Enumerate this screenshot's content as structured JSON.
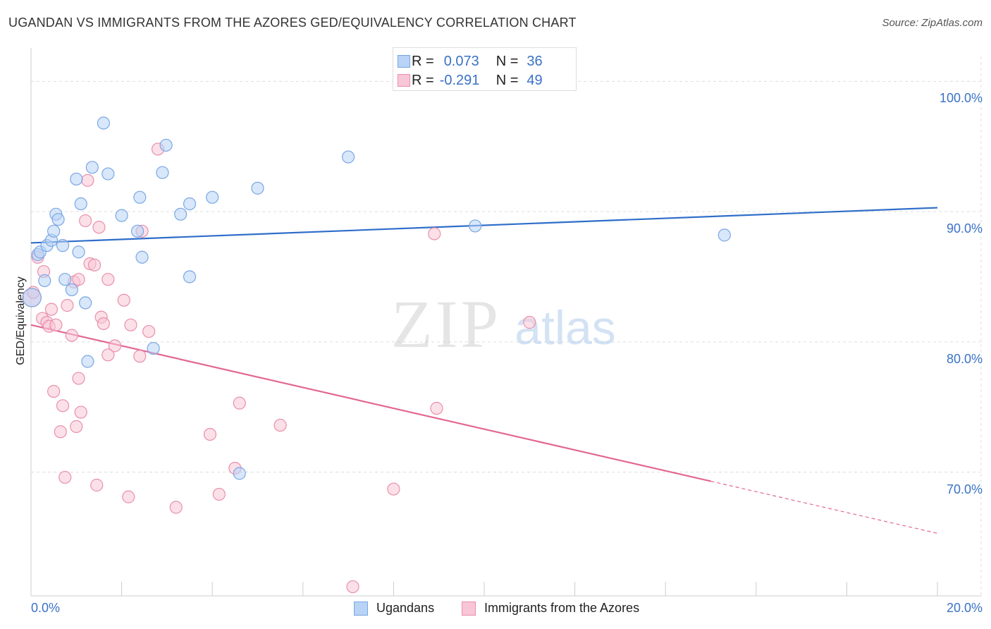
{
  "header": {
    "title": "UGANDAN VS IMMIGRANTS FROM THE AZORES GED/EQUIVALENCY CORRELATION CHART",
    "source": "Source: ZipAtlas.com"
  },
  "watermark": {
    "zip": "ZIP",
    "atlas": "atlas"
  },
  "legend_top": {
    "rows": [
      {
        "r_label": "R =",
        "r_value": "0.073",
        "n_label": "N =",
        "n_value": "36"
      },
      {
        "r_label": "R =",
        "r_value": "-0.291",
        "n_label": "N =",
        "n_value": "49"
      }
    ]
  },
  "legend_bottom": {
    "items": [
      {
        "label": "Ugandans"
      },
      {
        "label": "Immigrants from the Azores"
      }
    ]
  },
  "colors": {
    "blue_fill": "#b8d3f5",
    "blue_stroke": "#7aa7e3",
    "blue_line": "#2f6ec9",
    "pink_fill": "#f8c6d6",
    "pink_stroke": "#ea8fac",
    "pink_line": "#e36794",
    "axis_label": "#3a72c6",
    "grid": "#dddddd"
  },
  "chart_data": {
    "type": "scatter",
    "title": "UGANDAN VS IMMIGRANTS FROM THE AZORES GED/EQUIVALENCY CORRELATION CHART",
    "ylabel": "GED/Equivalency",
    "xlabel": "",
    "xlim": [
      0,
      20
    ],
    "ylim": [
      60.5,
      103
    ],
    "x_tick_labels": [
      "0.0%",
      "20.0%"
    ],
    "y_ticks": [
      70,
      80,
      90,
      100
    ],
    "y_tick_labels": [
      "70.0%",
      "80.0%",
      "90.0%",
      "100.0%"
    ],
    "grid": true,
    "series": [
      {
        "name": "Ugandans",
        "points": [
          [
            0.02,
            83.4
          ],
          [
            0.15,
            86.7
          ],
          [
            0.2,
            86.9
          ],
          [
            0.3,
            84.7
          ],
          [
            0.35,
            87.4
          ],
          [
            0.45,
            87.8
          ],
          [
            0.5,
            88.5
          ],
          [
            0.55,
            89.8
          ],
          [
            0.6,
            89.4
          ],
          [
            0.7,
            87.4
          ],
          [
            0.75,
            84.8
          ],
          [
            0.9,
            84.0
          ],
          [
            1.0,
            92.5
          ],
          [
            1.05,
            86.9
          ],
          [
            1.1,
            90.6
          ],
          [
            1.2,
            83.0
          ],
          [
            1.25,
            78.5
          ],
          [
            1.35,
            93.4
          ],
          [
            1.6,
            96.8
          ],
          [
            1.7,
            92.9
          ],
          [
            2.0,
            89.7
          ],
          [
            2.35,
            88.5
          ],
          [
            2.4,
            91.1
          ],
          [
            2.45,
            86.5
          ],
          [
            2.7,
            79.5
          ],
          [
            2.9,
            93.0
          ],
          [
            2.98,
            95.1
          ],
          [
            3.3,
            89.8
          ],
          [
            3.5,
            90.6
          ],
          [
            3.5,
            85.0
          ],
          [
            4.0,
            91.1
          ],
          [
            4.6,
            69.9
          ],
          [
            5.0,
            91.8
          ],
          [
            7.0,
            94.2
          ],
          [
            9.8,
            88.9
          ],
          [
            15.3,
            88.2
          ]
        ]
      },
      {
        "name": "Immigrants from the Azores",
        "points": [
          [
            0.02,
            83.4
          ],
          [
            0.05,
            83.8
          ],
          [
            0.15,
            86.5
          ],
          [
            0.25,
            81.8
          ],
          [
            0.28,
            85.4
          ],
          [
            0.35,
            81.5
          ],
          [
            0.4,
            81.2
          ],
          [
            0.45,
            82.5
          ],
          [
            0.5,
            76.2
          ],
          [
            0.55,
            81.3
          ],
          [
            0.65,
            73.1
          ],
          [
            0.7,
            75.1
          ],
          [
            0.75,
            69.6
          ],
          [
            0.8,
            82.8
          ],
          [
            0.9,
            80.5
          ],
          [
            0.95,
            84.6
          ],
          [
            1.0,
            73.5
          ],
          [
            1.05,
            84.8
          ],
          [
            1.05,
            77.2
          ],
          [
            1.1,
            74.6
          ],
          [
            1.2,
            89.3
          ],
          [
            1.25,
            92.4
          ],
          [
            1.3,
            86.0
          ],
          [
            1.4,
            85.9
          ],
          [
            1.45,
            69.0
          ],
          [
            1.5,
            88.8
          ],
          [
            1.55,
            81.9
          ],
          [
            1.6,
            81.4
          ],
          [
            1.7,
            84.8
          ],
          [
            1.7,
            79.0
          ],
          [
            1.85,
            79.7
          ],
          [
            2.05,
            83.2
          ],
          [
            2.15,
            68.1
          ],
          [
            2.2,
            81.3
          ],
          [
            2.4,
            78.9
          ],
          [
            2.45,
            88.5
          ],
          [
            2.6,
            80.8
          ],
          [
            2.8,
            94.8
          ],
          [
            3.2,
            67.3
          ],
          [
            3.95,
            72.9
          ],
          [
            4.15,
            68.3
          ],
          [
            4.5,
            70.3
          ],
          [
            4.6,
            75.3
          ],
          [
            5.5,
            73.6
          ],
          [
            7.1,
            61.2
          ],
          [
            8.0,
            68.7
          ],
          [
            8.9,
            88.3
          ],
          [
            8.95,
            74.9
          ],
          [
            11.0,
            81.5
          ]
        ]
      }
    ],
    "trendlines": [
      {
        "series": "Ugandans",
        "x_start": 0,
        "y_start": 87.6,
        "x_end": 20,
        "y_end": 90.3
      },
      {
        "series": "Immigrants from the Azores",
        "x_start": 0,
        "y_start": 81.3,
        "x_end": 15.0,
        "y_end": 69.3,
        "dashed_to_x": 20,
        "dashed_to_y": 65.3
      }
    ]
  }
}
